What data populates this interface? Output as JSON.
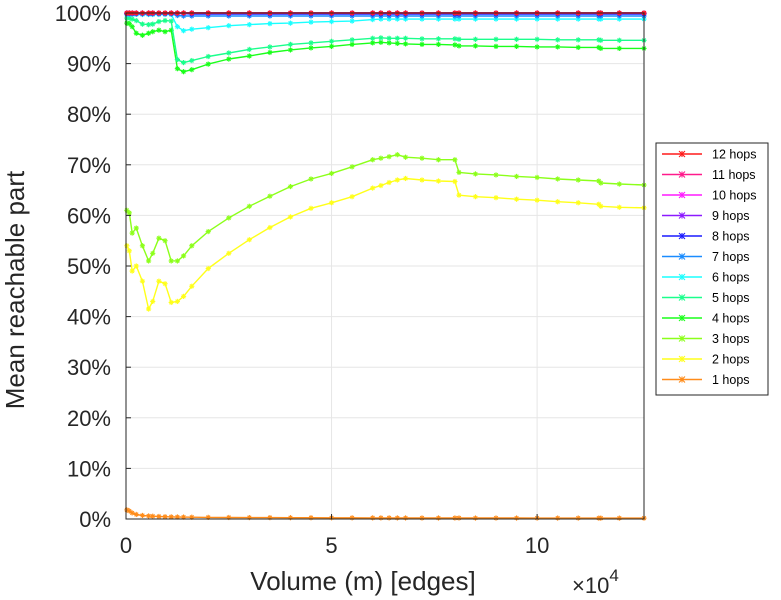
{
  "chart_data": {
    "type": "line",
    "title": "",
    "xlabel": "Volume (m) [edges]",
    "ylabel": "Mean reachable part",
    "x_multiplier_label": "×10",
    "x_multiplier_exponent": "4",
    "xlim": [
      0,
      126000
    ],
    "ylim": [
      0,
      100
    ],
    "x_ticks": [
      0,
      50000,
      100000
    ],
    "x_tick_labels": [
      "0",
      "5",
      "10"
    ],
    "y_ticks": [
      0,
      10,
      20,
      30,
      40,
      50,
      60,
      70,
      80,
      90,
      100
    ],
    "y_tick_labels": [
      "0%",
      "10%",
      "20%",
      "30%",
      "40%",
      "50%",
      "60%",
      "70%",
      "80%",
      "90%",
      "100%"
    ],
    "grid": true,
    "legend_position": "right",
    "x": [
      200,
      800,
      1500,
      2500,
      4000,
      5500,
      6500,
      8000,
      9500,
      11000,
      12500,
      14000,
      16000,
      20000,
      25000,
      30000,
      35000,
      40000,
      45000,
      50000,
      55000,
      60000,
      62000,
      64000,
      66000,
      68000,
      72000,
      76000,
      80000,
      81000,
      85000,
      90000,
      95000,
      100000,
      105000,
      110000,
      115000,
      115500,
      120000,
      126000
    ],
    "series": [
      {
        "name": "12 hops",
        "color": "#ff1a1a",
        "values": [
          100,
          100,
          100,
          100,
          100,
          100,
          100,
          100,
          100,
          100,
          100,
          100,
          100,
          100,
          100,
          100,
          100,
          100,
          100,
          100,
          100,
          100,
          100,
          100,
          100,
          100,
          100,
          100,
          100,
          100,
          100,
          100,
          100,
          100,
          100,
          100,
          100,
          100,
          100,
          100
        ]
      },
      {
        "name": "11 hops",
        "color": "#ff1a8c",
        "values": [
          100,
          100,
          100,
          100,
          100,
          100,
          100,
          100,
          100,
          100,
          100,
          100,
          100,
          100,
          100,
          100,
          100,
          100,
          100,
          100,
          100,
          100,
          100,
          100,
          100,
          100,
          100,
          100,
          100,
          100,
          100,
          100,
          100,
          100,
          100,
          100,
          100,
          100,
          100,
          100
        ]
      },
      {
        "name": "10 hops",
        "color": "#ff1aff",
        "values": [
          100,
          100,
          100,
          100,
          100,
          100,
          100,
          100,
          100,
          100,
          100,
          100,
          100,
          100,
          100,
          100,
          100,
          100,
          100,
          100,
          100,
          100,
          100,
          100,
          100,
          100,
          100,
          100,
          100,
          100,
          100,
          100,
          100,
          100,
          100,
          100,
          100,
          100,
          100,
          100
        ]
      },
      {
        "name": "9 hops",
        "color": "#8c1aff",
        "values": [
          100,
          100,
          100,
          100,
          100,
          100,
          100,
          100,
          100,
          100,
          100,
          100,
          100,
          100,
          100,
          100,
          100,
          100,
          100,
          100,
          100,
          100,
          100,
          100,
          100,
          100,
          100,
          100,
          100,
          100,
          100,
          100,
          100,
          100,
          100,
          100,
          100,
          100,
          100,
          100
        ]
      },
      {
        "name": "8 hops",
        "color": "#1a1aff",
        "values": [
          99.9,
          99.9,
          99.9,
          99.9,
          99.9,
          99.9,
          99.9,
          99.9,
          99.9,
          99.9,
          99.9,
          99.9,
          99.8,
          99.8,
          99.8,
          99.8,
          99.8,
          99.8,
          99.8,
          99.8,
          99.8,
          99.8,
          99.8,
          99.8,
          99.8,
          99.8,
          99.8,
          99.8,
          99.8,
          99.8,
          99.8,
          99.8,
          99.8,
          99.8,
          99.8,
          99.8,
          99.8,
          99.8,
          99.8,
          99.8
        ]
      },
      {
        "name": "7 hops",
        "color": "#1a8cff",
        "values": [
          99.8,
          99.8,
          99.8,
          99.8,
          99.8,
          99.8,
          99.8,
          99.8,
          99.8,
          99.8,
          99.5,
          99.4,
          99.4,
          99.4,
          99.4,
          99.4,
          99.4,
          99.4,
          99.4,
          99.4,
          99.4,
          99.4,
          99.4,
          99.4,
          99.4,
          99.4,
          99.4,
          99.4,
          99.4,
          99.4,
          99.4,
          99.4,
          99.4,
          99.4,
          99.4,
          99.4,
          99.4,
          99.4,
          99.4,
          99.4
        ]
      },
      {
        "name": "6 hops",
        "color": "#1affff",
        "values": [
          99.7,
          99.7,
          99.7,
          99.7,
          99.7,
          99.7,
          99.7,
          99.7,
          99.7,
          99.7,
          97.3,
          96.5,
          96.8,
          97.1,
          97.5,
          97.7,
          97.9,
          98.0,
          98.2,
          98.3,
          98.4,
          98.7,
          98.8,
          98.8,
          98.8,
          98.8,
          98.8,
          98.8,
          98.8,
          98.8,
          98.8,
          98.8,
          98.8,
          98.8,
          98.8,
          98.8,
          98.8,
          98.8,
          98.8,
          98.8
        ]
      },
      {
        "name": "5 hops",
        "color": "#1aff8c",
        "values": [
          99.0,
          99.0,
          98.8,
          98.5,
          97.8,
          97.7,
          97.8,
          98.3,
          98.5,
          98.4,
          90.8,
          90.2,
          90.6,
          91.4,
          92.1,
          92.8,
          93.3,
          93.8,
          94.1,
          94.4,
          94.7,
          95.0,
          95.1,
          95.0,
          95.0,
          95.0,
          94.9,
          94.9,
          94.9,
          94.8,
          94.8,
          94.8,
          94.8,
          94.8,
          94.7,
          94.7,
          94.7,
          94.6,
          94.6,
          94.6
        ]
      },
      {
        "name": "4 hops",
        "color": "#1aff1a",
        "values": [
          98.0,
          97.9,
          97.3,
          96.0,
          95.6,
          96.0,
          96.3,
          96.6,
          96.3,
          96.6,
          89.0,
          88.4,
          88.8,
          89.9,
          90.9,
          91.5,
          92.2,
          92.7,
          93.1,
          93.4,
          93.8,
          94.1,
          94.2,
          94.1,
          94.0,
          93.9,
          93.8,
          93.8,
          93.7,
          93.5,
          93.5,
          93.4,
          93.4,
          93.3,
          93.3,
          93.2,
          93.2,
          93.0,
          93.0,
          93.0
        ]
      },
      {
        "name": "3 hops",
        "color": "#8cff1a",
        "values": [
          61.0,
          60.5,
          56.5,
          57.5,
          54.0,
          51.0,
          52.5,
          55.5,
          55.0,
          51.0,
          51.0,
          52.0,
          54.0,
          56.8,
          59.5,
          61.8,
          63.8,
          65.7,
          67.2,
          68.3,
          69.6,
          71.0,
          71.3,
          71.6,
          72.0,
          71.5,
          71.3,
          71.0,
          71.0,
          68.5,
          68.2,
          68.0,
          67.7,
          67.5,
          67.2,
          67.0,
          66.8,
          66.4,
          66.2,
          66.0
        ]
      },
      {
        "name": "2 hops",
        "color": "#ffff1a",
        "values": [
          54.0,
          53.0,
          49.0,
          50.0,
          47.0,
          41.5,
          43.0,
          47.0,
          46.5,
          42.8,
          43.0,
          44.0,
          46.0,
          49.5,
          52.5,
          55.2,
          57.6,
          59.7,
          61.4,
          62.5,
          63.7,
          65.4,
          65.9,
          66.5,
          67.0,
          67.3,
          67.0,
          66.8,
          66.7,
          64.0,
          63.7,
          63.5,
          63.2,
          63.0,
          62.7,
          62.5,
          62.2,
          61.8,
          61.6,
          61.5
        ]
      },
      {
        "name": "1 hops",
        "color": "#ff8c1a",
        "values": [
          1.8,
          1.6,
          1.2,
          0.9,
          0.7,
          0.6,
          0.55,
          0.5,
          0.45,
          0.42,
          0.4,
          0.38,
          0.35,
          0.32,
          0.3,
          0.28,
          0.27,
          0.26,
          0.25,
          0.24,
          0.23,
          0.22,
          0.22,
          0.22,
          0.21,
          0.21,
          0.2,
          0.2,
          0.2,
          0.2,
          0.19,
          0.19,
          0.19,
          0.18,
          0.18,
          0.18,
          0.17,
          0.17,
          0.17,
          0.17
        ]
      }
    ]
  }
}
